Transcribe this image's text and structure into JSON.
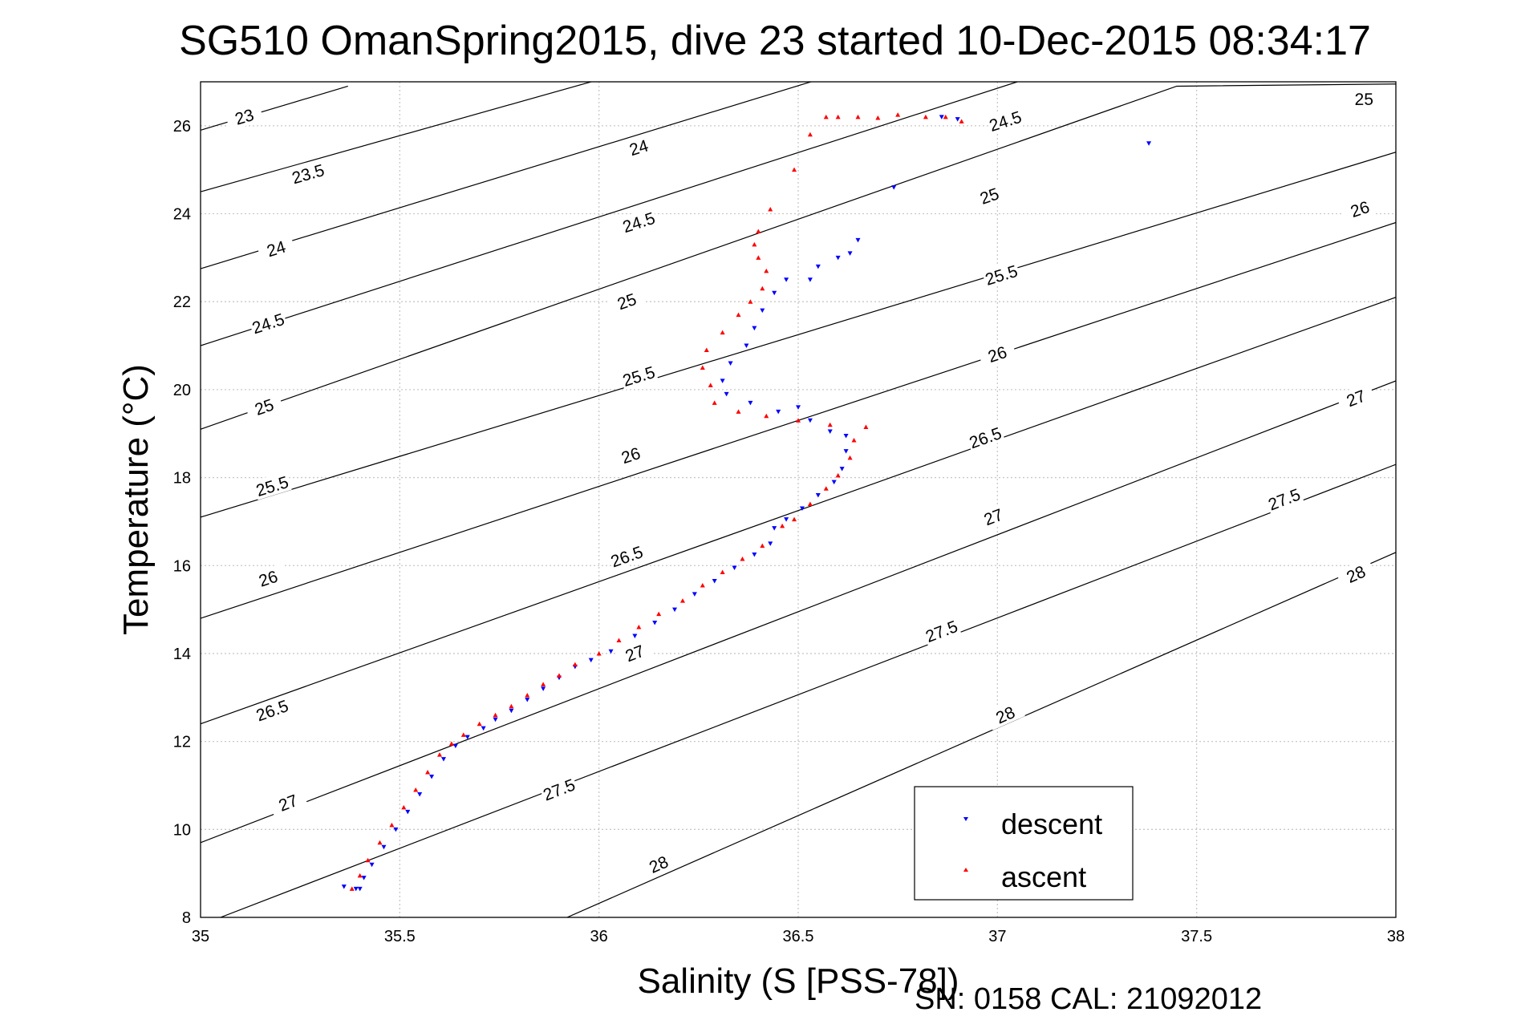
{
  "chart_data": {
    "type": "scatter",
    "title": "SG510 OmanSpring2015, dive 23 started 10-Dec-2015 08:34:17",
    "xlabel": "Salinity (S [PSS-78])",
    "ylabel": "Temperature (°C)",
    "xlim": [
      35,
      38
    ],
    "ylim": [
      8,
      27
    ],
    "x_ticks": [
      "35",
      "35.5",
      "36",
      "36.5",
      "37",
      "37.5",
      "38"
    ],
    "y_ticks": [
      "8",
      "10",
      "12",
      "14",
      "16",
      "18",
      "20",
      "22",
      "24",
      "26"
    ],
    "grid": true,
    "legend_position": "bottom-right",
    "footer_text": "SN: 0158  CAL: 21092012",
    "contour_lines": [
      {
        "label": "23",
        "points": [
          [
            35,
            25.9
          ],
          [
            35.37,
            26.9
          ]
        ],
        "label_at": [
          35.11,
          26.2
        ]
      },
      {
        "label": "23.5",
        "points": [
          [
            35,
            24.5
          ],
          [
            36,
            27.05
          ]
        ],
        "label_at": [
          35.27,
          24.9
        ]
      },
      {
        "label": "24",
        "points": [
          [
            35,
            22.75
          ],
          [
            36.55,
            27.05
          ]
        ],
        "label_at": [
          36.1,
          25.5
        ]
      },
      {
        "label": "24",
        "points": [
          [
            35,
            22.75
          ],
          [
            36.55,
            27.05
          ]
        ],
        "label_at": [
          35.19,
          23.2
        ]
      },
      {
        "label": "24.5",
        "points": [
          [
            35,
            21.0
          ],
          [
            37.05,
            27.0
          ]
        ],
        "label_at": [
          36.1,
          23.8
        ]
      },
      {
        "label": "24.5",
        "points": [
          [
            35,
            21.0
          ],
          [
            37.05,
            27.0
          ]
        ],
        "label_at": [
          35.17,
          21.5
        ]
      },
      {
        "label": "24.5",
        "points": [
          [
            35,
            21.0
          ],
          [
            37.05,
            27.0
          ]
        ],
        "label_at": [
          37.02,
          26.1
        ]
      },
      {
        "label": "25",
        "points": [
          [
            35,
            19.1
          ],
          [
            37.45,
            26.9
          ],
          [
            38,
            26.95
          ]
        ],
        "label_at": [
          36.07,
          22.0
        ]
      },
      {
        "label": "25",
        "points": [
          [
            35,
            19.1
          ],
          [
            37.45,
            26.9
          ],
          [
            38,
            26.95
          ]
        ],
        "label_at": [
          35.16,
          19.6
        ]
      },
      {
        "label": "25",
        "points": [
          [
            35,
            19.1
          ],
          [
            37.45,
            26.9
          ],
          [
            38,
            26.95
          ]
        ],
        "label_at": [
          36.98,
          24.4
        ]
      },
      {
        "label": "25",
        "points": [
          [
            35,
            19.1
          ],
          [
            37.45,
            26.9
          ],
          [
            38,
            26.95
          ]
        ],
        "label_at": [
          37.92,
          26.6
        ]
      },
      {
        "label": "25.5",
        "points": [
          [
            35,
            17.1
          ],
          [
            38,
            25.4
          ]
        ],
        "label_at": [
          36.1,
          20.3
        ]
      },
      {
        "label": "25.5",
        "points": [
          [
            35,
            17.1
          ],
          [
            38,
            25.4
          ]
        ],
        "label_at": [
          35.18,
          17.8
        ]
      },
      {
        "label": "25.5",
        "points": [
          [
            35,
            17.1
          ],
          [
            38,
            25.4
          ]
        ],
        "label_at": [
          37.01,
          22.6
        ]
      },
      {
        "label": "26",
        "points": [
          [
            35,
            14.8
          ],
          [
            38,
            23.8
          ]
        ],
        "label_at": [
          36.08,
          18.5
        ]
      },
      {
        "label": "26",
        "points": [
          [
            35,
            14.8
          ],
          [
            38,
            23.8
          ]
        ],
        "label_at": [
          35.17,
          15.7
        ]
      },
      {
        "label": "26",
        "points": [
          [
            35,
            14.8
          ],
          [
            38,
            23.8
          ]
        ],
        "label_at": [
          37.0,
          20.8
        ]
      },
      {
        "label": "26",
        "points": [
          [
            35,
            14.8
          ],
          [
            38,
            23.8
          ]
        ],
        "label_at": [
          37.91,
          24.1
        ]
      },
      {
        "label": "26.5",
        "points": [
          [
            35,
            12.4
          ],
          [
            38,
            22.1
          ]
        ],
        "label_at": [
          36.07,
          16.2
        ]
      },
      {
        "label": "26.5",
        "points": [
          [
            35,
            12.4
          ],
          [
            38,
            22.1
          ]
        ],
        "label_at": [
          35.18,
          12.7
        ]
      },
      {
        "label": "26.5",
        "points": [
          [
            35,
            12.4
          ],
          [
            38,
            22.1
          ]
        ],
        "label_at": [
          36.97,
          18.9
        ]
      },
      {
        "label": "27",
        "points": [
          [
            35,
            9.7
          ],
          [
            38,
            20.2
          ]
        ],
        "label_at": [
          36.09,
          14.0
        ]
      },
      {
        "label": "27",
        "points": [
          [
            35,
            9.7
          ],
          [
            38,
            20.2
          ]
        ],
        "label_at": [
          35.22,
          10.6
        ]
      },
      {
        "label": "27",
        "points": [
          [
            35,
            9.7
          ],
          [
            38,
            20.2
          ]
        ],
        "label_at": [
          36.99,
          17.1
        ]
      },
      {
        "label": "27",
        "points": [
          [
            35,
            9.7
          ],
          [
            38,
            20.2
          ]
        ],
        "label_at": [
          37.9,
          19.8
        ]
      },
      {
        "label": "27.5",
        "points": [
          [
            35.05,
            8
          ],
          [
            38,
            18.3
          ]
        ],
        "label_at": [
          35.9,
          10.9
        ]
      },
      {
        "label": "27.5",
        "points": [
          [
            35.05,
            8
          ],
          [
            38,
            18.3
          ]
        ],
        "label_at": [
          36.86,
          14.5
        ]
      },
      {
        "label": "27.5",
        "points": [
          [
            35.05,
            8
          ],
          [
            38,
            18.3
          ]
        ],
        "label_at": [
          37.72,
          17.5
        ]
      },
      {
        "label": "28",
        "points": [
          [
            35.92,
            8
          ],
          [
            38,
            16.3
          ]
        ],
        "label_at": [
          36.15,
          9.2
        ]
      },
      {
        "label": "28",
        "points": [
          [
            35.92,
            8
          ],
          [
            38,
            16.3
          ]
        ],
        "label_at": [
          37.02,
          12.6
        ]
      },
      {
        "label": "28",
        "points": [
          [
            35.92,
            8
          ],
          [
            38,
            16.3
          ]
        ],
        "label_at": [
          37.9,
          15.8
        ]
      }
    ],
    "series": [
      {
        "name": "descent",
        "color": "#0000ff",
        "marker": "triangle-down",
        "points": [
          [
            35.39,
            8.65
          ],
          [
            35.41,
            8.9
          ],
          [
            35.43,
            9.2
          ],
          [
            35.46,
            9.6
          ],
          [
            35.49,
            10.0
          ],
          [
            35.52,
            10.4
          ],
          [
            35.55,
            10.8
          ],
          [
            35.58,
            11.2
          ],
          [
            35.61,
            11.6
          ],
          [
            35.64,
            11.9
          ],
          [
            35.67,
            12.1
          ],
          [
            35.71,
            12.3
          ],
          [
            35.74,
            12.5
          ],
          [
            35.78,
            12.7
          ],
          [
            35.82,
            12.95
          ],
          [
            35.86,
            13.2
          ],
          [
            35.9,
            13.45
          ],
          [
            35.94,
            13.7
          ],
          [
            35.98,
            13.85
          ],
          [
            36.03,
            14.05
          ],
          [
            36.09,
            14.4
          ],
          [
            36.14,
            14.7
          ],
          [
            36.19,
            15.0
          ],
          [
            36.24,
            15.35
          ],
          [
            36.29,
            15.65
          ],
          [
            36.34,
            15.95
          ],
          [
            36.39,
            16.25
          ],
          [
            36.43,
            16.5
          ],
          [
            36.44,
            16.85
          ],
          [
            36.47,
            17.05
          ],
          [
            36.51,
            17.3
          ],
          [
            36.55,
            17.6
          ],
          [
            36.59,
            17.9
          ],
          [
            36.61,
            18.2
          ],
          [
            36.62,
            18.6
          ],
          [
            36.62,
            18.95
          ],
          [
            36.58,
            19.05
          ],
          [
            36.53,
            19.3
          ],
          [
            36.5,
            19.6
          ],
          [
            36.45,
            19.5
          ],
          [
            36.38,
            19.7
          ],
          [
            36.32,
            19.9
          ],
          [
            36.31,
            20.2
          ],
          [
            36.33,
            20.6
          ],
          [
            36.37,
            21.0
          ],
          [
            36.39,
            21.4
          ],
          [
            36.41,
            21.8
          ],
          [
            36.44,
            22.2
          ],
          [
            36.47,
            22.5
          ],
          [
            36.53,
            22.5
          ],
          [
            36.55,
            22.8
          ],
          [
            36.6,
            23.0
          ],
          [
            36.63,
            23.1
          ],
          [
            36.65,
            23.4
          ],
          [
            36.74,
            24.6
          ],
          [
            36.86,
            26.2
          ],
          [
            36.9,
            26.15
          ],
          [
            37.38,
            25.6
          ],
          [
            35.36,
            8.7
          ],
          [
            35.4,
            8.65
          ]
        ]
      },
      {
        "name": "ascent",
        "color": "#ff0000",
        "marker": "triangle-up",
        "points": [
          [
            35.38,
            8.65
          ],
          [
            35.4,
            8.95
          ],
          [
            35.42,
            9.3
          ],
          [
            35.45,
            9.7
          ],
          [
            35.48,
            10.1
          ],
          [
            35.51,
            10.5
          ],
          [
            35.54,
            10.9
          ],
          [
            35.57,
            11.3
          ],
          [
            35.6,
            11.7
          ],
          [
            35.63,
            11.95
          ],
          [
            35.66,
            12.15
          ],
          [
            35.7,
            12.4
          ],
          [
            35.74,
            12.6
          ],
          [
            35.78,
            12.8
          ],
          [
            35.82,
            13.05
          ],
          [
            35.86,
            13.3
          ],
          [
            35.9,
            13.5
          ],
          [
            35.94,
            13.75
          ],
          [
            36.0,
            14.0
          ],
          [
            36.05,
            14.3
          ],
          [
            36.1,
            14.6
          ],
          [
            36.15,
            14.9
          ],
          [
            36.21,
            15.2
          ],
          [
            36.26,
            15.55
          ],
          [
            36.31,
            15.85
          ],
          [
            36.36,
            16.15
          ],
          [
            36.41,
            16.45
          ],
          [
            36.46,
            16.9
          ],
          [
            36.49,
            17.05
          ],
          [
            36.53,
            17.4
          ],
          [
            36.57,
            17.75
          ],
          [
            36.6,
            18.05
          ],
          [
            36.63,
            18.45
          ],
          [
            36.64,
            18.85
          ],
          [
            36.67,
            19.15
          ],
          [
            36.58,
            19.2
          ],
          [
            36.5,
            19.3
          ],
          [
            36.42,
            19.4
          ],
          [
            36.35,
            19.5
          ],
          [
            36.29,
            19.7
          ],
          [
            36.28,
            20.1
          ],
          [
            36.26,
            20.5
          ],
          [
            36.27,
            20.9
          ],
          [
            36.31,
            21.3
          ],
          [
            36.35,
            21.7
          ],
          [
            36.38,
            22.0
          ],
          [
            36.41,
            22.3
          ],
          [
            36.42,
            22.7
          ],
          [
            36.4,
            23.0
          ],
          [
            36.39,
            23.3
          ],
          [
            36.4,
            23.6
          ],
          [
            36.43,
            24.1
          ],
          [
            36.49,
            25.0
          ],
          [
            36.53,
            25.8
          ],
          [
            36.57,
            26.2
          ],
          [
            36.65,
            26.2
          ],
          [
            36.75,
            26.25
          ],
          [
            36.82,
            26.2
          ],
          [
            36.87,
            26.2
          ],
          [
            36.91,
            26.1
          ],
          [
            36.6,
            26.2
          ],
          [
            36.7,
            26.18
          ]
        ]
      }
    ]
  }
}
